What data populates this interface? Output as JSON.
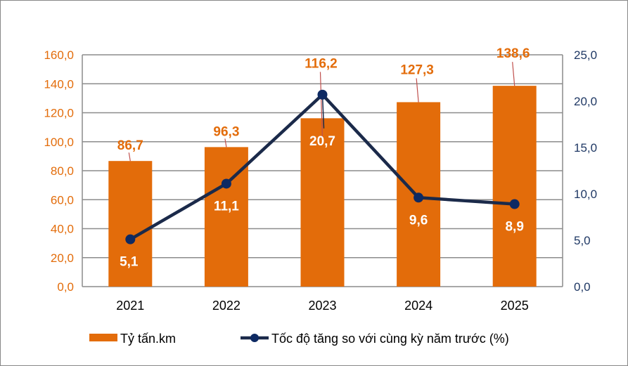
{
  "chart_data": {
    "type": "bar+line",
    "categories": [
      "2021",
      "2022",
      "2023",
      "2024",
      "2025"
    ],
    "series": [
      {
        "name": "Tỷ tấn.km",
        "type": "bar",
        "axis": "left",
        "values": [
          86.7,
          96.3,
          116.2,
          127.3,
          138.6
        ],
        "labels": [
          "86,7",
          "96,3",
          "116,2",
          "127,3",
          "138,6"
        ],
        "color": "#e36c0a"
      },
      {
        "name": "Tốc độ tăng so với cùng kỳ năm trước (%)",
        "type": "line",
        "axis": "right",
        "values": [
          5.1,
          11.1,
          20.7,
          9.6,
          8.9
        ],
        "labels": [
          "5,1",
          "11,1",
          "20,7",
          "9,6",
          "8,9"
        ],
        "color": "#1b2a4a",
        "marker_color": "#0e2a63"
      }
    ],
    "left_axis": {
      "ylim": [
        0,
        160
      ],
      "ticks": [
        "0,0",
        "20,0",
        "40,0",
        "60,0",
        "80,0",
        "100,0",
        "120,0",
        "140,0",
        "160,0"
      ],
      "color": "#e36c0a"
    },
    "right_axis": {
      "ylim": [
        0,
        25
      ],
      "ticks": [
        "0,0",
        "5,0",
        "10,0",
        "15,0",
        "20,0",
        "25,0"
      ],
      "color": "#1f3864"
    },
    "grid": true,
    "legend_position": "bottom"
  }
}
